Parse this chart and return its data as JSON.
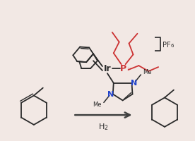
{
  "bg_color": "#f2e8e4",
  "line_color": "#2a2a2a",
  "red_color": "#cc3333",
  "blue_color": "#2244cc",
  "arrow_color": "#404040",
  "cod_color": "#2a2a2a",
  "pf6_text": "PF",
  "pf6_sub": "6",
  "h2_label": "H$_2$",
  "ir_label": "Ir",
  "p_label": "P",
  "n_label": "N",
  "me_label": "Me"
}
